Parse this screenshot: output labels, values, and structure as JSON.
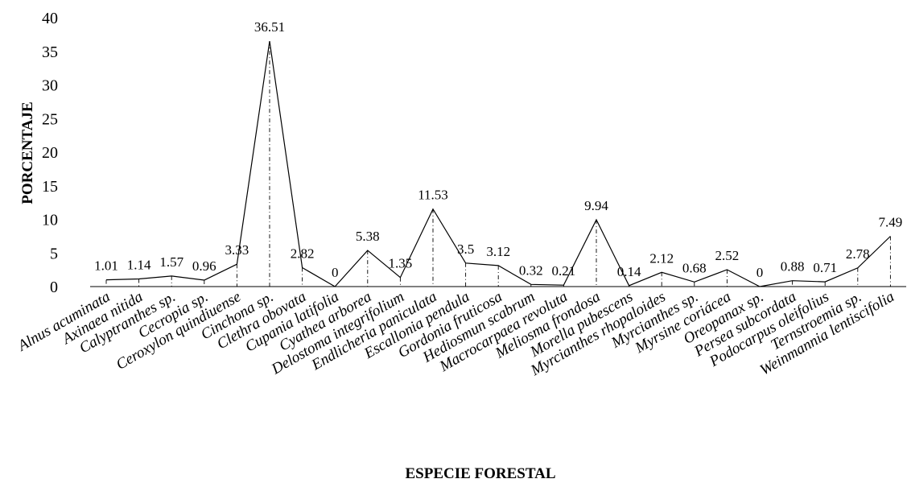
{
  "chart_data": {
    "type": "line",
    "title": "",
    "xlabel": "ESPECIE FORESTAL",
    "ylabel": "PORCENTAJE",
    "ylim": [
      0,
      40
    ],
    "yticks": [
      0,
      5,
      10,
      15,
      20,
      25,
      30,
      35,
      40
    ],
    "grid": false,
    "legend": "none",
    "line_color": "#000000",
    "drop_lines": true,
    "categories": [
      "Alnus acuminata",
      "Axinaea nitida",
      "Calyptranthes sp.",
      "Cecropia sp.",
      "Ceroxylon quindiuense",
      "Cinchona sp.",
      "Clethra obovata",
      "Cupania latifolia",
      "Cyathea arborea",
      "Delostoma integrifolium",
      "Endlicheria paniculata",
      "Escallonia pendula",
      "Gordonia fruticosa",
      "Hediosmun scabrum",
      "Macrocarpaea revoluta",
      "Meliosma frondosa",
      "Morella pubescens",
      "Myrcianthes rhopaloides",
      "Myrcianthes sp.",
      "Myrsine coriácea",
      "Oreopanax sp.",
      "Persea subcordata",
      "Podocarpus oleifolius",
      "Ternstroemia sp.",
      "Weinmannia lentiscifolia"
    ],
    "values": [
      1.01,
      1.14,
      1.57,
      0.96,
      3.33,
      36.51,
      2.82,
      0,
      5.38,
      1.35,
      11.53,
      3.5,
      3.12,
      0.32,
      0.21,
      9.94,
      0.14,
      2.12,
      0.68,
      2.52,
      0,
      0.88,
      0.71,
      2.78,
      7.49
    ],
    "data_labels": [
      "1.01",
      "1.14",
      "1.57",
      "0.96",
      "3.33",
      "36.51",
      "2.82",
      "0",
      "5.38",
      "1.35",
      "11.53",
      "3.5",
      "3.12",
      "0.32",
      "0.21",
      "9.94",
      "0.14",
      "2.12",
      "0.68",
      "2.52",
      "0",
      "0.88",
      "0.71",
      "2.78",
      "7.49"
    ]
  }
}
